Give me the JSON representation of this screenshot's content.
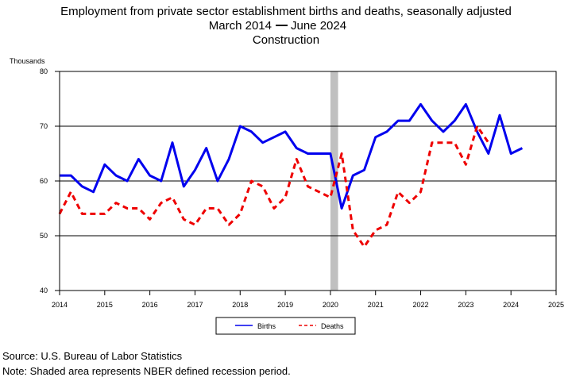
{
  "chart_data": {
    "type": "line",
    "title_lines": [
      "Employment from private sector establishment births and deaths, seasonally adjusted",
      "March 2014",
      "June 2024",
      "Construction"
    ],
    "ylabel": "Thousands",
    "xlabel": "",
    "xlim": [
      2014,
      2025
    ],
    "ylim": [
      40,
      80
    ],
    "x_ticks": [
      2014,
      2015,
      2016,
      2017,
      2018,
      2019,
      2020,
      2021,
      2022,
      2023,
      2024,
      2025
    ],
    "x_tick_labels": [
      "2014",
      "2015",
      "2016",
      "2017",
      "2018",
      "2019",
      "2020",
      "2021",
      "2022",
      "2023",
      "2024",
      "2025"
    ],
    "y_ticks": [
      40,
      50,
      60,
      70,
      80
    ],
    "y_tick_labels": [
      "40",
      "50",
      "60",
      "70",
      "80"
    ],
    "grid": "horizontal",
    "recession": {
      "start": 2020.0,
      "end": 2020.17
    },
    "legend": {
      "placement": "bottom-center"
    },
    "series": [
      {
        "name": "Births",
        "color": "#0000ee",
        "style": "solid",
        "x": [
          2014.0,
          2014.25,
          2014.5,
          2014.75,
          2015.0,
          2015.25,
          2015.5,
          2015.75,
          2016.0,
          2016.25,
          2016.5,
          2016.75,
          2017.0,
          2017.25,
          2017.5,
          2017.75,
          2018.0,
          2018.25,
          2018.5,
          2018.75,
          2019.0,
          2019.25,
          2019.5,
          2019.75,
          2020.0,
          2020.25,
          2020.5,
          2020.75,
          2021.0,
          2021.25,
          2021.5,
          2021.75,
          2022.0,
          2022.25,
          2022.5,
          2022.75,
          2023.0,
          2023.25,
          2023.5,
          2023.75,
          2024.0,
          2024.25
        ],
        "values": [
          61,
          61,
          59,
          58,
          63,
          61,
          60,
          64,
          61,
          60,
          67,
          59,
          62,
          66,
          60,
          64,
          70,
          69,
          67,
          68,
          69,
          66,
          65,
          65,
          65,
          55,
          61,
          62,
          68,
          69,
          71,
          71,
          74,
          71,
          69,
          71,
          74,
          69,
          65,
          72,
          65,
          66
        ]
      },
      {
        "name": "Deaths",
        "color": "#ee0000",
        "style": "dashed",
        "x": [
          2014.0,
          2014.25,
          2014.5,
          2014.75,
          2015.0,
          2015.25,
          2015.5,
          2015.75,
          2016.0,
          2016.25,
          2016.5,
          2016.75,
          2017.0,
          2017.25,
          2017.5,
          2017.75,
          2018.0,
          2018.25,
          2018.5,
          2018.75,
          2019.0,
          2019.25,
          2019.5,
          2019.75,
          2020.0,
          2020.25,
          2020.5,
          2020.75,
          2021.0,
          2021.25,
          2021.5,
          2021.75,
          2022.0,
          2022.25,
          2022.5,
          2022.75,
          2023.0,
          2023.25,
          2023.5
        ],
        "values": [
          54,
          58,
          54,
          54,
          54,
          56,
          55,
          55,
          53,
          56,
          57,
          53,
          52,
          55,
          55,
          52,
          54,
          60,
          59,
          55,
          57,
          64,
          59,
          58,
          57,
          65,
          51,
          48,
          51,
          52,
          58,
          56,
          58,
          67,
          67,
          67,
          63,
          70,
          67
        ]
      }
    ]
  },
  "footer": {
    "source": "Source: U.S. Bureau of Labor Statistics",
    "note": "Note: Shaded area represents NBER defined recession period."
  }
}
